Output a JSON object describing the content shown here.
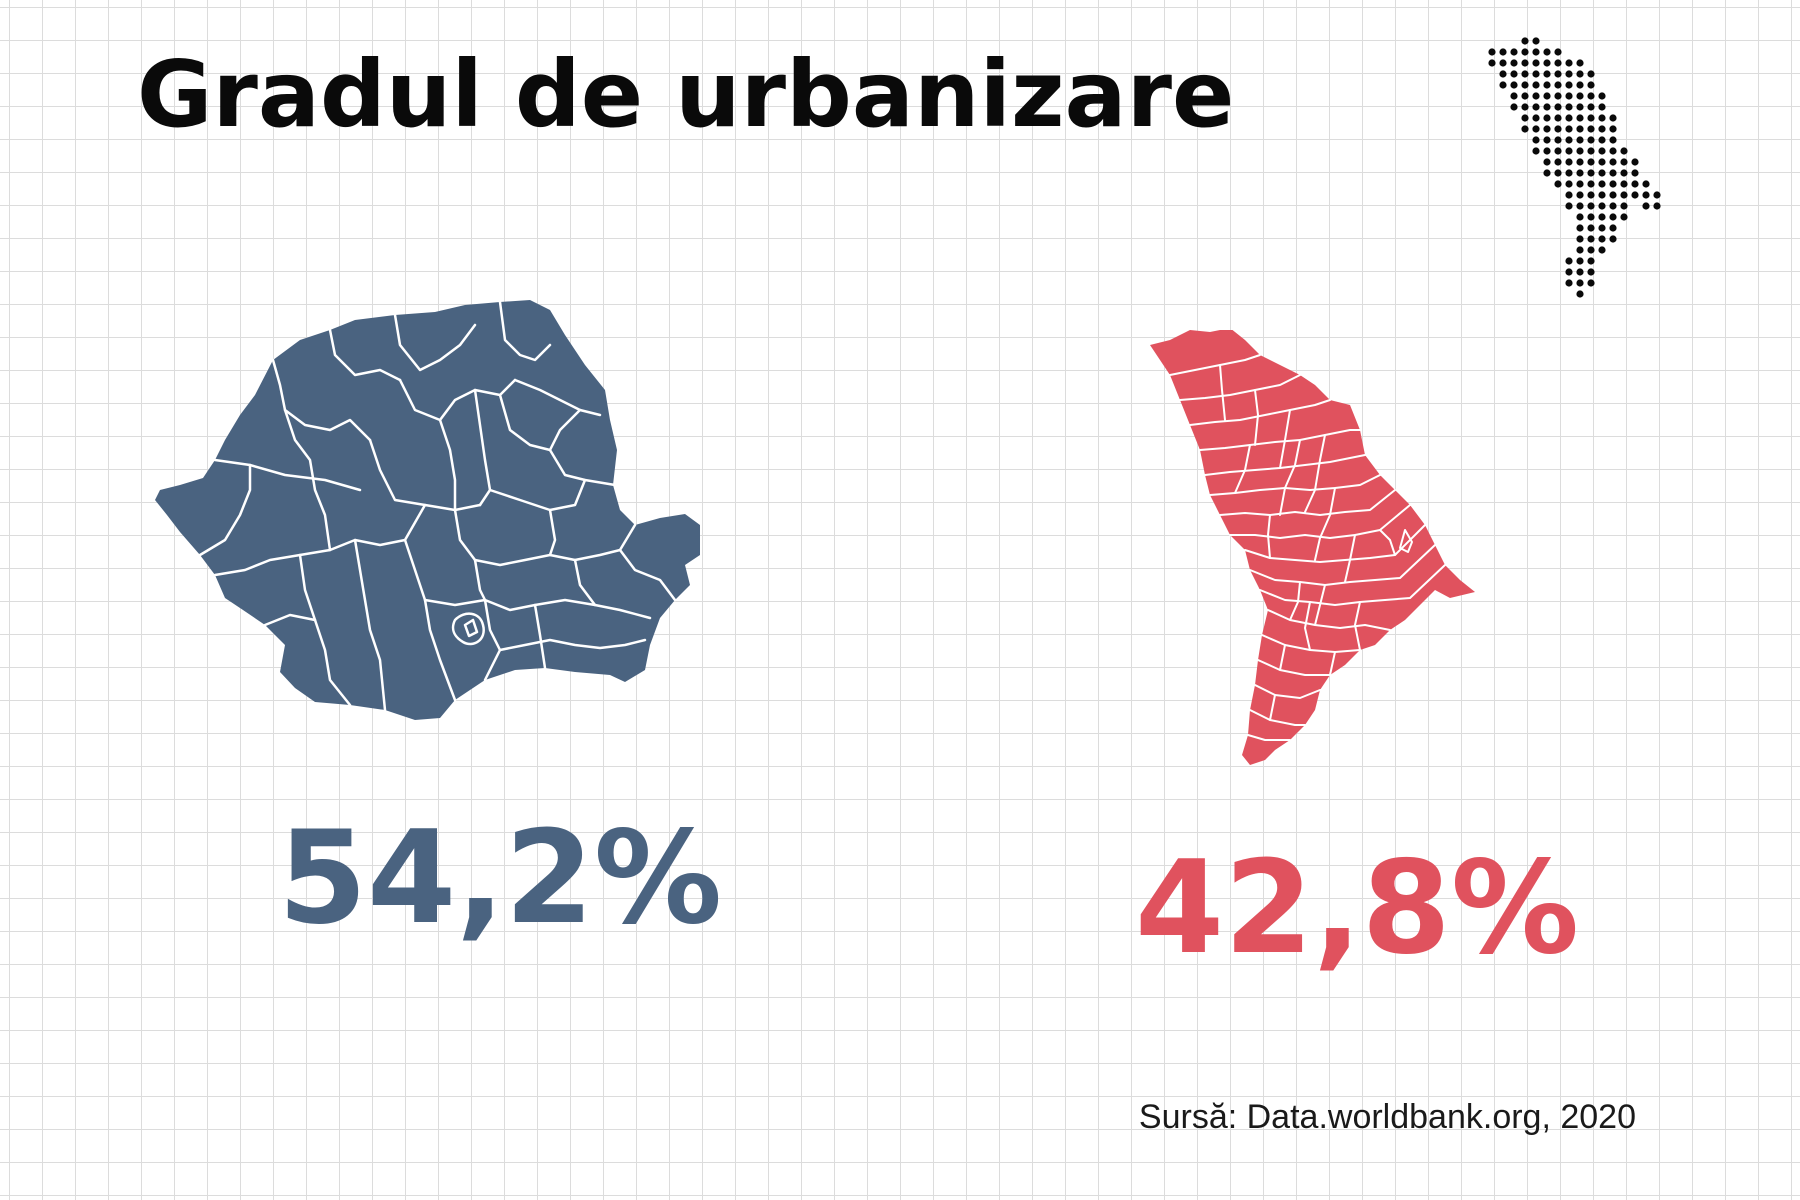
{
  "title": "Gradul de urbanizare",
  "countries": [
    {
      "value": "54,2%",
      "color": "#4a6380"
    },
    {
      "value": "42,8%",
      "color": "#e0525e"
    }
  ],
  "source": "Sursă: Data.worldbank.org, 2020",
  "icons": {
    "logo": "dotted-moldova-map-logo",
    "romania_map": "romania-counties-map",
    "moldova_map": "moldova-districts-map"
  }
}
